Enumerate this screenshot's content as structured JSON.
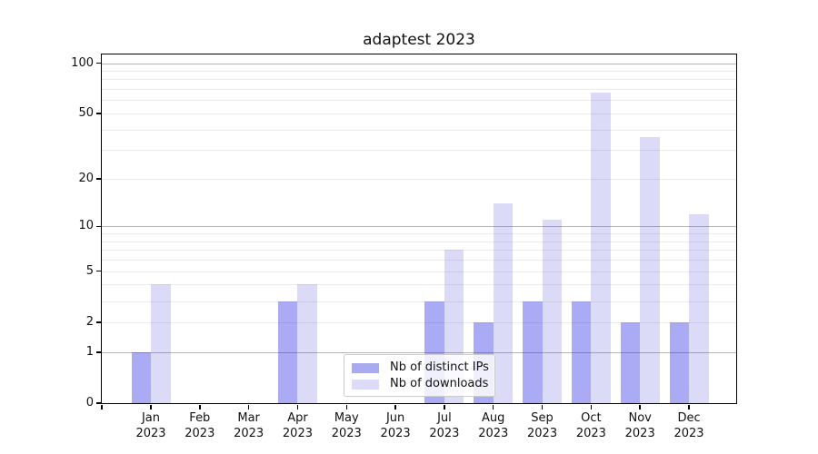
{
  "chart_data": {
    "type": "bar",
    "title": "adaptest 2023",
    "categories": [
      "Jan 2023",
      "Feb 2023",
      "Mar 2023",
      "Apr 2023",
      "May 2023",
      "Jun 2023",
      "Jul 2023",
      "Aug 2023",
      "Sep 2023",
      "Oct 2023",
      "Nov 2023",
      "Dec 2023"
    ],
    "series": [
      {
        "name": "Nb of distinct IPs",
        "color": "#aaaaf0",
        "bar_rgba": "rgba(43,43,230,0.4)",
        "values": [
          1,
          0,
          0,
          3,
          0,
          0,
          3,
          2,
          3,
          3,
          2,
          2
        ]
      },
      {
        "name": "Nb of downloads",
        "color": "#dcdcf8",
        "bar_rgba": "rgba(75,75,215,0.2)",
        "values": [
          4,
          0,
          0,
          4,
          0,
          0,
          7,
          14,
          11,
          67,
          36,
          12
        ]
      }
    ],
    "y_axis": {
      "scale": "log10(value+1)",
      "tick_labels": [
        0,
        1,
        2,
        5,
        10,
        20,
        50,
        100
      ],
      "major_gridlines": [
        1,
        10,
        100
      ],
      "minor_gridlines": [
        2,
        3,
        4,
        5,
        6,
        7,
        8,
        9,
        20,
        30,
        40,
        50,
        60,
        70,
        80,
        90
      ],
      "range": [
        0,
        113
      ]
    },
    "legend": {
      "position": "lower center",
      "entries": [
        "Nb of distinct IPs",
        "Nb of downloads"
      ]
    },
    "grid": true,
    "background_color": "#ffffff",
    "major_grid_color": "#b4b4b4",
    "minor_grid_color": "#ebebeb"
  }
}
